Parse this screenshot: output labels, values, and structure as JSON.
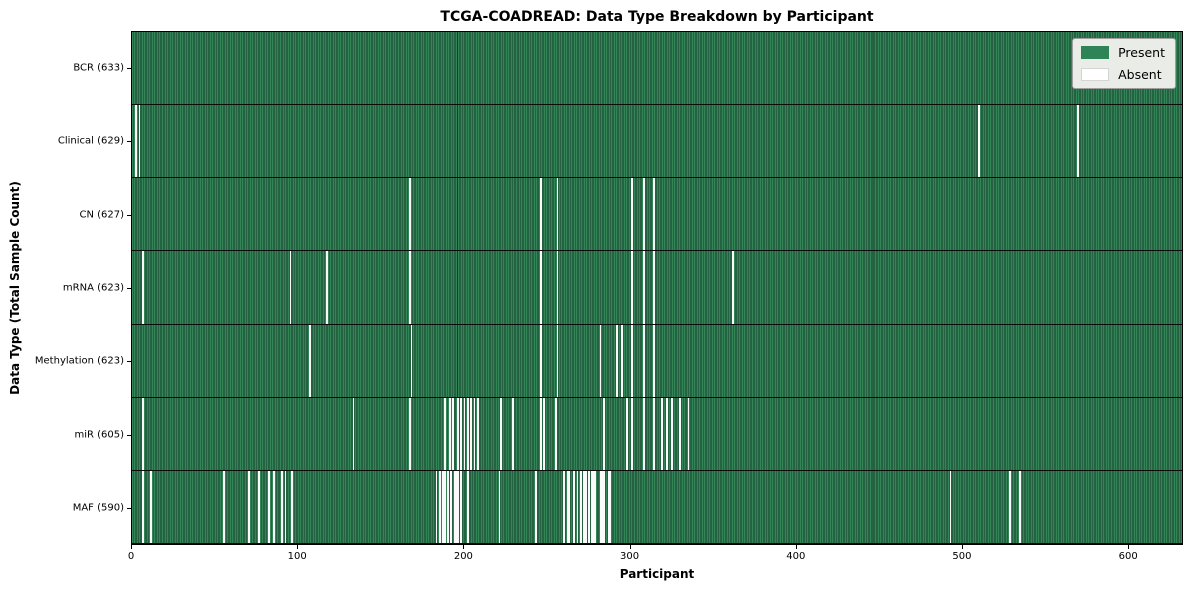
{
  "chart_data": {
    "type": "heatmap",
    "title": "TCGA-COADREAD: Data Type Breakdown by Participant",
    "xlabel": "Participant",
    "ylabel": "Data Type (Total Sample Count)",
    "x_range": [
      0,
      633
    ],
    "x_ticks": [
      0,
      100,
      200,
      300,
      400,
      500,
      600
    ],
    "grid": false,
    "legend_position": "upper right",
    "legend": [
      {
        "label": "Present",
        "color": "#2e8457"
      },
      {
        "label": "Absent",
        "color": "#ffffff"
      }
    ],
    "colors": {
      "present_fill": "#338557",
      "bar_edge": "#17402b",
      "absent": "#fafafa",
      "plot_border": "#000000"
    },
    "rows": [
      {
        "label": "BCR (633)",
        "data_type": "BCR",
        "total_samples": 633,
        "absent_participants": []
      },
      {
        "label": "Clinical (629)",
        "data_type": "Clinical",
        "total_samples": 629,
        "absent_participants": [
          2,
          4,
          510,
          570
        ]
      },
      {
        "label": "CN (627)",
        "data_type": "CN",
        "total_samples": 627,
        "absent_participants": [
          167,
          246,
          256,
          301,
          308,
          314
        ]
      },
      {
        "label": "mRNA (623)",
        "data_type": "mRNA",
        "total_samples": 623,
        "absent_participants": [
          6,
          95,
          117,
          167,
          246,
          256,
          301,
          308,
          314,
          362
        ]
      },
      {
        "label": "Methylation (623)",
        "data_type": "Methylation",
        "total_samples": 623,
        "absent_participants": [
          107,
          168,
          246,
          256,
          282,
          292,
          295,
          301,
          308,
          314
        ]
      },
      {
        "label": "miR (605)",
        "data_type": "miR",
        "total_samples": 605,
        "absent_participants": [
          6,
          133,
          167,
          188,
          191,
          193,
          196,
          198,
          200,
          202,
          204,
          206,
          208,
          222,
          229,
          246,
          248,
          255,
          284,
          298,
          301,
          308,
          314,
          319,
          322,
          325,
          330,
          335
        ]
      },
      {
        "label": "MAF (590)",
        "data_type": "MAF",
        "total_samples": 590,
        "absent_participants": [
          6,
          11,
          55,
          70,
          76,
          82,
          85,
          90,
          92,
          96,
          183,
          185,
          187,
          188,
          190,
          192,
          194,
          195,
          196,
          198,
          202,
          221,
          243,
          260,
          262,
          263,
          266,
          268,
          270,
          272,
          273,
          275,
          277,
          278,
          279,
          282,
          283,
          284,
          287,
          288,
          493,
          529,
          535
        ]
      }
    ]
  }
}
